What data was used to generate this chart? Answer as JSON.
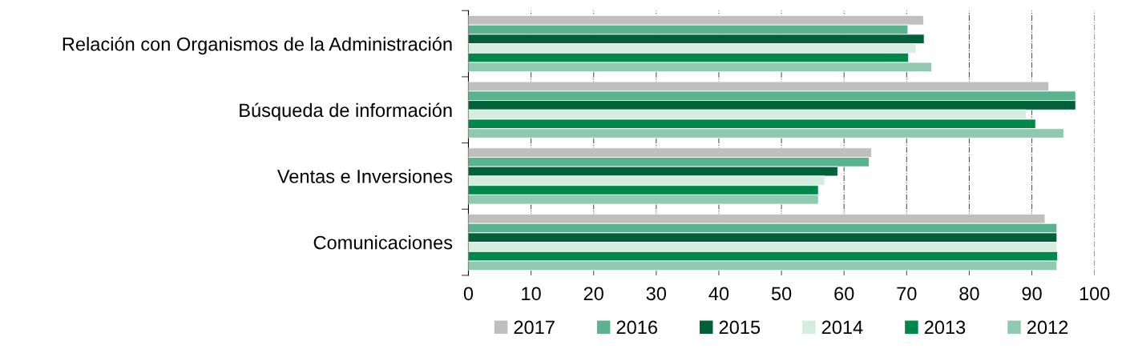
{
  "chart_data": {
    "type": "bar",
    "orientation": "horizontal",
    "categories": [
      "Relación con Organismos de la Administración",
      "Búsqueda de información",
      "Ventas e Inversiones",
      "Comunicaciones"
    ],
    "series": [
      {
        "name": "2017",
        "color": "#bfbfbf",
        "values": [
          72.7,
          92.7,
          64.4,
          92.1
        ]
      },
      {
        "name": "2016",
        "color": "#5bb28f",
        "values": [
          70.2,
          97.0,
          64.0,
          94.0
        ]
      },
      {
        "name": "2015",
        "color": "#006139",
        "values": [
          72.8,
          97.0,
          59.0,
          94.0
        ]
      },
      {
        "name": "2014",
        "color": "#d5ece1",
        "values": [
          71.5,
          89.1,
          56.9,
          94.0
        ]
      },
      {
        "name": "2013",
        "color": "#00884a",
        "values": [
          70.3,
          90.6,
          55.9,
          94.1
        ]
      },
      {
        "name": "2012",
        "color": "#8fcab0",
        "values": [
          74.0,
          95.1,
          55.9,
          94.0
        ]
      }
    ],
    "xlim": [
      0,
      100
    ],
    "xticks": [
      0,
      10,
      20,
      30,
      40,
      50,
      60,
      70,
      80,
      90,
      100
    ],
    "grid": "x",
    "legend": "bottom"
  }
}
